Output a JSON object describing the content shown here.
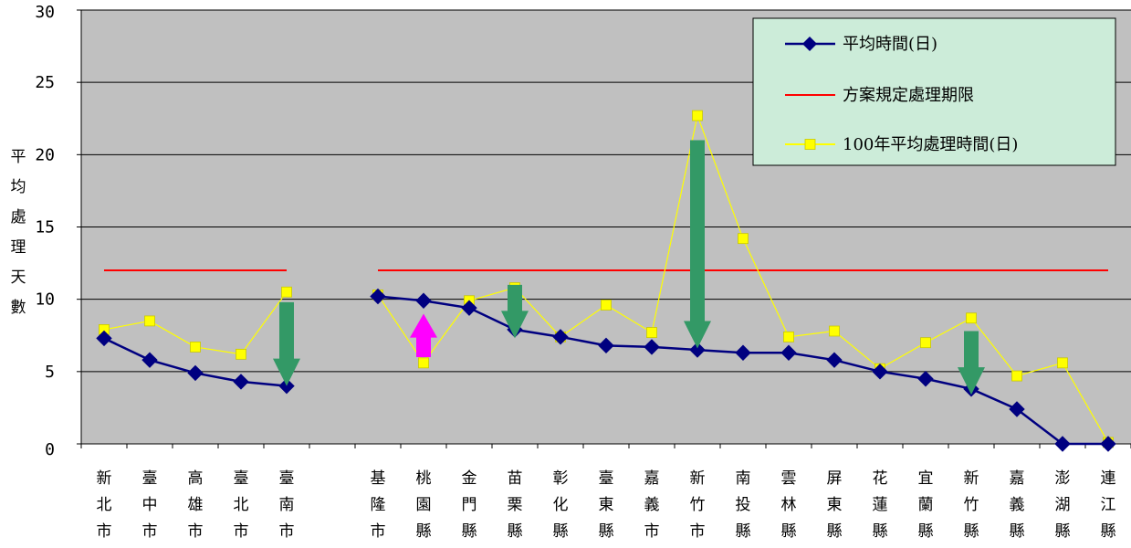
{
  "chart_data": {
    "type": "line",
    "ylabel": "平均處理天數",
    "ylim": [
      0,
      30
    ],
    "yticks": [
      0,
      5,
      10,
      15,
      20,
      25,
      30
    ],
    "grid": true,
    "legend_position": "top-right",
    "categories": [
      "新北市",
      "臺中市",
      "高雄市",
      "臺北市",
      "臺南市",
      "",
      "基隆市",
      "桃園縣",
      "金門縣",
      "苗栗縣",
      "彰化縣",
      "臺東縣",
      "嘉義市",
      "新竹市",
      "南投縣",
      "雲林縣",
      "屏東縣",
      "花蓮縣",
      "宜蘭縣",
      "新竹縣",
      "嘉義縣",
      "澎湖縣",
      "連江縣"
    ],
    "series": [
      {
        "name": "平均時間(日)",
        "color": "#000080",
        "marker": "diamond",
        "values": [
          7.3,
          5.8,
          4.9,
          4.3,
          4.0,
          null,
          10.2,
          9.9,
          9.4,
          7.9,
          7.4,
          6.8,
          6.7,
          6.5,
          6.3,
          6.3,
          5.8,
          5.0,
          4.5,
          3.8,
          2.4,
          0,
          0
        ]
      },
      {
        "name": "方案規定處理期限",
        "color": "#ff0000",
        "marker": "none",
        "values": [
          12,
          12,
          12,
          12,
          12,
          null,
          12,
          12,
          12,
          12,
          12,
          12,
          12,
          12,
          12,
          12,
          12,
          12,
          12,
          12,
          12,
          12,
          12
        ]
      },
      {
        "name": "100年平均處理時間(日)",
        "color": "#ffff00",
        "marker": "square",
        "values": [
          7.9,
          8.5,
          6.7,
          6.2,
          10.5,
          null,
          10.3,
          5.6,
          9.9,
          10.8,
          7.4,
          9.6,
          7.7,
          22.7,
          14.2,
          7.4,
          7.8,
          5.2,
          7.0,
          8.7,
          4.7,
          5.6,
          0.1
        ]
      }
    ],
    "arrows": [
      {
        "category": "臺南市",
        "from": 9.8,
        "to": 4.0,
        "color": "#339966"
      },
      {
        "category": "桃園縣",
        "from": 6.0,
        "to": 9.0,
        "color": "#ff00ff"
      },
      {
        "category": "苗栗縣",
        "from": 11.0,
        "to": 7.3,
        "color": "#339966"
      },
      {
        "category": "新竹市",
        "from": 21.0,
        "to": 6.6,
        "color": "#339966"
      },
      {
        "category": "新竹縣",
        "from": 7.8,
        "to": 3.4,
        "color": "#339966"
      }
    ]
  },
  "colors": {
    "plot_background": "#c0c0c0",
    "legend_background": "#ccecd9",
    "gridline": "#000000"
  }
}
